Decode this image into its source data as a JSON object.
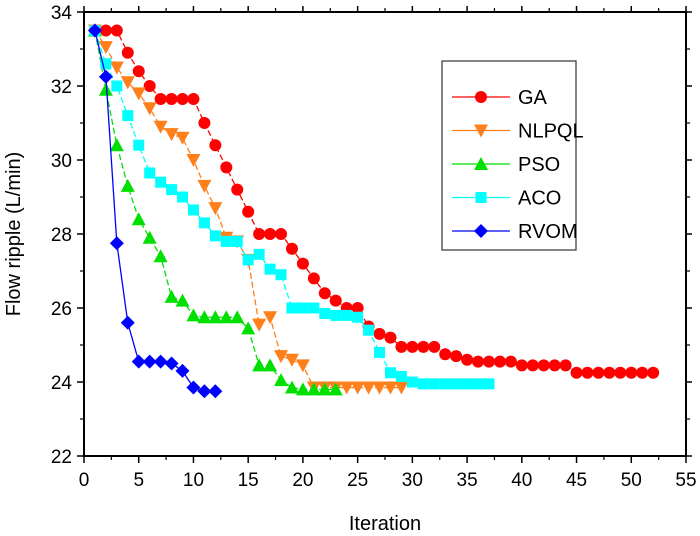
{
  "chart_data": {
    "type": "line",
    "title": "",
    "xlabel": "Iteration",
    "ylabel": "Flow ripple (L/min)",
    "xlim": [
      0,
      55
    ],
    "ylim": [
      22,
      34
    ],
    "xticks": [
      0,
      5,
      10,
      15,
      20,
      25,
      30,
      35,
      40,
      45,
      50,
      55
    ],
    "yticks": [
      22,
      24,
      26,
      28,
      30,
      32,
      34
    ],
    "grid": false,
    "legend_position": "top-right",
    "series": [
      {
        "name": "GA",
        "color": "#ff0000",
        "marker": "circle",
        "x": [
          1,
          2,
          3,
          4,
          5,
          6,
          7,
          8,
          9,
          10,
          11,
          12,
          13,
          14,
          15,
          16,
          17,
          18,
          19,
          20,
          21,
          22,
          23,
          24,
          25,
          26,
          27,
          28,
          29,
          30,
          31,
          32,
          33,
          34,
          35,
          36,
          37,
          38,
          39,
          40,
          41,
          42,
          43,
          44,
          45,
          46,
          47,
          48,
          49,
          50,
          51,
          52
        ],
        "y": [
          33.5,
          33.5,
          33.5,
          32.9,
          32.4,
          32.0,
          31.65,
          31.65,
          31.65,
          31.65,
          31.0,
          30.4,
          29.8,
          29.2,
          28.6,
          28.0,
          28.0,
          28.0,
          27.6,
          27.2,
          26.8,
          26.4,
          26.2,
          26.0,
          26.0,
          25.5,
          25.3,
          25.2,
          24.95,
          24.95,
          24.95,
          24.95,
          24.75,
          24.7,
          24.6,
          24.55,
          24.55,
          24.55,
          24.55,
          24.45,
          24.45,
          24.45,
          24.45,
          24.45,
          24.25,
          24.25,
          24.25,
          24.25,
          24.25,
          24.25,
          24.25,
          24.25
        ]
      },
      {
        "name": "NLPQL",
        "color": "#ff7f1a",
        "marker": "triangle-down",
        "x": [
          1,
          2,
          3,
          4,
          5,
          6,
          7,
          8,
          9,
          10,
          11,
          12,
          13,
          14,
          15,
          16,
          17,
          18,
          19,
          20,
          21,
          22,
          23,
          24,
          25,
          26,
          27,
          28,
          29
        ],
        "y": [
          33.5,
          33.05,
          32.5,
          32.1,
          31.8,
          31.4,
          30.9,
          30.7,
          30.6,
          30.0,
          29.3,
          28.7,
          27.9,
          27.8,
          27.3,
          25.55,
          25.75,
          24.7,
          24.6,
          24.45,
          23.85,
          23.85,
          23.85,
          23.85,
          23.85,
          23.85,
          23.85,
          23.85,
          23.85
        ]
      },
      {
        "name": "PSO",
        "color": "#00e000",
        "marker": "triangle-up",
        "x": [
          1,
          2,
          3,
          4,
          5,
          6,
          7,
          8,
          9,
          10,
          11,
          12,
          13,
          14,
          15,
          16,
          17,
          18,
          19,
          20,
          21,
          22,
          23
        ],
        "y": [
          33.5,
          31.9,
          30.4,
          29.3,
          28.4,
          27.9,
          27.4,
          26.3,
          26.2,
          25.8,
          25.75,
          25.75,
          25.75,
          25.75,
          25.45,
          24.45,
          24.45,
          24.05,
          23.85,
          23.8,
          23.8,
          23.8,
          23.8
        ]
      },
      {
        "name": "ACO",
        "color": "#00ffff",
        "marker": "square",
        "x": [
          1,
          2,
          3,
          4,
          5,
          6,
          7,
          8,
          9,
          10,
          11,
          12,
          13,
          14,
          15,
          16,
          17,
          18,
          19,
          20,
          21,
          22,
          23,
          24,
          25,
          26,
          27,
          28,
          29,
          30,
          31,
          32,
          33,
          34,
          35,
          36,
          37
        ],
        "y": [
          33.5,
          32.6,
          32.0,
          31.2,
          30.4,
          29.65,
          29.4,
          29.2,
          29.0,
          28.65,
          28.3,
          27.95,
          27.8,
          27.8,
          27.3,
          27.45,
          27.05,
          26.9,
          26.0,
          26.0,
          26.0,
          25.85,
          25.8,
          25.8,
          25.75,
          25.4,
          24.8,
          24.25,
          24.15,
          24.0,
          23.95,
          23.95,
          23.95,
          23.95,
          23.95,
          23.95,
          23.95
        ]
      },
      {
        "name": "RVOM",
        "color": "#0000ff",
        "marker": "diamond",
        "x": [
          1,
          2,
          3,
          4,
          5,
          6,
          7,
          8,
          9,
          10,
          11,
          12
        ],
        "y": [
          33.5,
          32.25,
          27.75,
          25.6,
          24.55,
          24.55,
          24.55,
          24.5,
          24.3,
          23.85,
          23.75,
          23.75
        ]
      }
    ]
  }
}
